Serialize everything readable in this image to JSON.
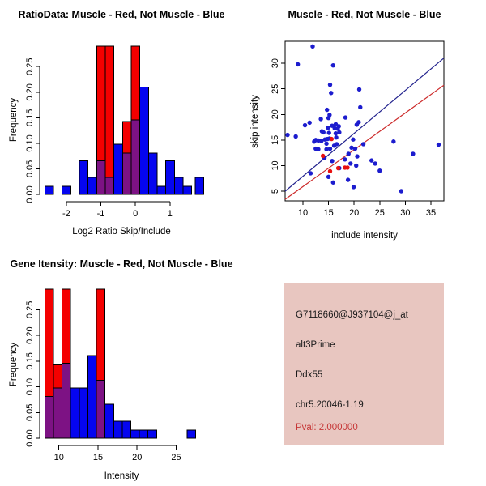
{
  "colors": {
    "hist_red": "#F40000",
    "hist_blue": "#0505F0",
    "hist_purple": "#7D1284",
    "point_blue": "#1C1CCE",
    "point_red": "#E81010",
    "line_blue": "#23238E",
    "line_red": "#CC2929",
    "axis": "#000000",
    "info_bg": "#E8C6C0",
    "info_text": "#1A1A1A",
    "pval_red": "#C63636"
  },
  "chart_data": [
    {
      "type": "histogram",
      "title": "RatioData: Muscle - Red, Not Muscle - Blue",
      "xlabel": "Log2 Ratio Skip/Include",
      "ylabel": "Frequency",
      "xlim": [
        -2.77,
        2.13
      ],
      "ylim": [
        0,
        0.29
      ],
      "bin_width": 0.25,
      "xtick_values": [
        -2,
        -1,
        0,
        1
      ],
      "xtick_labels": [
        "-2",
        "-1",
        "0",
        "1"
      ],
      "ytick_values": [
        0,
        0.05,
        0.1,
        0.15,
        0.2,
        0.25
      ],
      "ytick_labels": [
        "0.00",
        "0.05",
        "0.10",
        "0.15",
        "0.20",
        "0.25"
      ],
      "legend_note": "Muscle histogram drawn in red, Not Muscle in blue, overlap appears purple; tall red bars clipped at plot top (0.29)",
      "bins": [
        [
          -2.62,
          0,
          0.016
        ],
        [
          -2.12,
          0,
          0.016
        ],
        [
          -1.62,
          0,
          0.066
        ],
        [
          -1.37,
          0,
          0.033
        ],
        [
          -1.12,
          0.29,
          0.066
        ],
        [
          -0.87,
          0.29,
          0.033
        ],
        [
          -0.62,
          0,
          0.098
        ],
        [
          -0.37,
          0.143,
          0.081
        ],
        [
          -0.12,
          0.29,
          0.146
        ],
        [
          0.13,
          0,
          0.21
        ],
        [
          0.38,
          0,
          0.081
        ],
        [
          0.63,
          0,
          0.016
        ],
        [
          0.88,
          0,
          0.066
        ],
        [
          1.13,
          0,
          0.033
        ],
        [
          1.38,
          0,
          0.016
        ],
        [
          1.73,
          0,
          0.033
        ]
      ]
    },
    {
      "type": "scatter",
      "title": "Muscle - Red, Not Muscle - Blue",
      "xlabel": "include intensity",
      "ylabel": "skip intensity",
      "xlim": [
        6.52,
        37.53
      ],
      "ylim": [
        3.1,
        34.3
      ],
      "xtick_values": [
        10,
        15,
        20,
        25,
        30,
        35
      ],
      "xtick_labels": [
        "10",
        "15",
        "20",
        "25",
        "30",
        "35"
      ],
      "ytick_values": [
        5,
        10,
        15,
        20,
        25,
        30
      ],
      "ytick_labels": [
        "5",
        "10",
        "15",
        "20",
        "25",
        "30"
      ],
      "series": [
        {
          "name": "Not Muscle",
          "color_key": "point_blue",
          "points": [
            [
              11.9,
              33.3
            ],
            [
              9.0,
              29.8
            ],
            [
              15.9,
              29.6
            ],
            [
              15.3,
              25.8
            ],
            [
              21.0,
              24.9
            ],
            [
              15.5,
              24.2
            ],
            [
              21.2,
              21.4
            ],
            [
              14.7,
              20.9
            ],
            [
              15.2,
              19.9
            ],
            [
              13.5,
              19.1
            ],
            [
              15.0,
              19.3
            ],
            [
              18.3,
              19.4
            ],
            [
              11.3,
              18.4
            ],
            [
              10.4,
              17.9
            ],
            [
              20.5,
              18.0
            ],
            [
              20.9,
              18.5
            ],
            [
              15.7,
              17.8
            ],
            [
              16.4,
              18.1
            ],
            [
              17.0,
              17.7
            ],
            [
              14.9,
              17.4
            ],
            [
              16.2,
              17.3
            ],
            [
              16.8,
              17.2
            ],
            [
              13.7,
              16.7
            ],
            [
              14.0,
              16.5
            ],
            [
              15.1,
              16.4
            ],
            [
              16.4,
              16.3
            ],
            [
              17.1,
              16.5
            ],
            [
              7.0,
              16.0
            ],
            [
              8.6,
              15.7
            ],
            [
              12.5,
              15.0
            ],
            [
              13.0,
              14.9
            ],
            [
              13.6,
              14.8
            ],
            [
              14.3,
              15.1
            ],
            [
              14.8,
              15.2
            ],
            [
              15.2,
              15.3
            ],
            [
              16.5,
              15.5
            ],
            [
              12.2,
              14.7
            ],
            [
              14.6,
              14.3
            ],
            [
              16.1,
              13.9
            ],
            [
              16.6,
              14.2
            ],
            [
              19.8,
              15.1
            ],
            [
              21.8,
              14.2
            ],
            [
              27.7,
              14.7
            ],
            [
              36.5,
              14.1
            ],
            [
              12.5,
              13.3
            ],
            [
              13.0,
              13.2
            ],
            [
              14.6,
              13.2
            ],
            [
              15.3,
              13.3
            ],
            [
              19.5,
              13.5
            ],
            [
              20.2,
              13.3
            ],
            [
              18.9,
              12.3
            ],
            [
              31.5,
              12.3
            ],
            [
              14.2,
              11.5
            ],
            [
              18.2,
              11.2
            ],
            [
              15.7,
              10.9
            ],
            [
              20.6,
              11.8
            ],
            [
              23.4,
              11.0
            ],
            [
              19.3,
              10.4
            ],
            [
              20.4,
              10.0
            ],
            [
              24.1,
              10.4
            ],
            [
              25.0,
              9.0
            ],
            [
              17.1,
              9.5
            ],
            [
              11.5,
              8.5
            ],
            [
              15.0,
              7.8
            ],
            [
              15.9,
              6.7
            ],
            [
              18.8,
              7.2
            ],
            [
              19.9,
              5.8
            ],
            [
              29.2,
              5.0
            ]
          ]
        },
        {
          "name": "Muscle",
          "color_key": "point_red",
          "points": [
            [
              15.6,
              15.2
            ],
            [
              13.9,
              11.9
            ],
            [
              15.3,
              8.9
            ],
            [
              16.9,
              9.5
            ],
            [
              18.2,
              9.6
            ],
            [
              18.7,
              9.6
            ]
          ]
        }
      ],
      "fit_lines": [
        {
          "name": "not-muscle-fit",
          "color_key": "line_blue",
          "from": [
            6.52,
            4.98
          ],
          "to": [
            37.53,
            31.03
          ]
        },
        {
          "name": "muscle-fit",
          "color_key": "line_red",
          "from": [
            6.52,
            3.39
          ],
          "to": [
            37.53,
            25.72
          ]
        }
      ]
    },
    {
      "type": "histogram",
      "title": "Gene Itensity: Muscle - Red, Not Muscle - Blue",
      "xlabel": "Intensity",
      "ylabel": "Frequency",
      "xlim": [
        7.54,
        29.2
      ],
      "ylim": [
        0,
        0.29
      ],
      "bin_width": 1.1,
      "xtick_values": [
        10,
        15,
        20,
        25
      ],
      "xtick_labels": [
        "10",
        "15",
        "20",
        "25"
      ],
      "ytick_values": [
        0,
        0.05,
        0.1,
        0.15,
        0.2,
        0.25
      ],
      "ytick_labels": [
        "0.00",
        "0.05",
        "0.10",
        "0.15",
        "0.20",
        "0.25"
      ],
      "legend_note": "Muscle histogram drawn in red, Not Muscle in blue, overlap appears purple; tall red bars clipped at plot top (0.29)",
      "bins": [
        [
          8.2,
          0.29,
          0.081
        ],
        [
          9.3,
          0.143,
          0.098
        ],
        [
          10.4,
          0.29,
          0.146
        ],
        [
          11.5,
          0,
          0.098
        ],
        [
          12.6,
          0,
          0.098
        ],
        [
          13.7,
          0,
          0.161
        ],
        [
          14.8,
          0.29,
          0.113
        ],
        [
          15.9,
          0,
          0.066
        ],
        [
          17.0,
          0,
          0.033
        ],
        [
          18.1,
          0,
          0.033
        ],
        [
          19.2,
          0,
          0.016
        ],
        [
          20.3,
          0,
          0.016
        ],
        [
          21.4,
          0,
          0.016
        ],
        [
          26.4,
          0,
          0.016
        ]
      ]
    }
  ],
  "info_box": {
    "lines": [
      {
        "text": "G7118660@J937104@j_at"
      },
      {
        "text": "alt3Prime"
      },
      {
        "text": "Ddx55"
      },
      {
        "text": "chr5.20046-1.19"
      },
      {
        "text": "Pval: 2.000000"
      }
    ]
  }
}
